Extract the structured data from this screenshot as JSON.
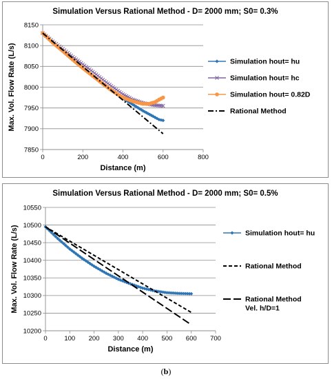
{
  "chart_data": [
    {
      "type": "line",
      "title": "Simulation Versus Rational Method - D= 2000 mm; S0= 0.3%",
      "xlabel": "Distance (m)",
      "ylabel": "Max. Vol. Flow Rate (L/s)",
      "xlim": [
        0,
        800
      ],
      "ylim": [
        7850,
        8150
      ],
      "xticks": [
        0,
        200,
        400,
        600,
        800
      ],
      "yticks": [
        7850,
        7900,
        7950,
        8000,
        8050,
        8100,
        8150
      ],
      "grid": "horizontal",
      "legend": "right",
      "series": [
        {
          "name": "Simulation hout= hu",
          "color": "#2e75b6",
          "marker": "diamond",
          "x": [
            0,
            50,
            100,
            150,
            200,
            250,
            300,
            350,
            400,
            450,
            500,
            550,
            580,
            600
          ],
          "y": [
            8130,
            8107,
            8087,
            8066,
            8046,
            8027,
            8008,
            7990,
            7973,
            7958,
            7943,
            7930,
            7922,
            7920
          ]
        },
        {
          "name": "Simulation hout= hc",
          "color": "#8064a2",
          "marker": "x",
          "x": [
            0,
            50,
            100,
            150,
            200,
            250,
            300,
            350,
            400,
            450,
            500,
            550,
            600
          ],
          "y": [
            8130,
            8110,
            8092,
            8073,
            8055,
            8037,
            8018,
            8000,
            7983,
            7970,
            7962,
            7957,
            7955
          ]
        },
        {
          "name": "Simulation hout= 0.82D",
          "color": "#f79646",
          "marker": "circle",
          "x": [
            0,
            50,
            100,
            150,
            200,
            250,
            300,
            350,
            400,
            450,
            480,
            500,
            530,
            560,
            580,
            600
          ],
          "y": [
            8130,
            8107,
            8087,
            8066,
            8046,
            8027,
            8008,
            7990,
            7975,
            7966,
            7962,
            7960,
            7960,
            7964,
            7970,
            7975
          ]
        },
        {
          "name": "Rational Method",
          "color": "#000000",
          "marker": "none",
          "dash": "dashdot",
          "x": [
            0,
            600
          ],
          "y": [
            8130,
            7888
          ]
        }
      ]
    },
    {
      "type": "line",
      "title": "Simulation Versus Rational Method - D= 2000 mm; S0= 0.5%",
      "xlabel": "Distance (m)",
      "ylabel": "Max. Vol. Flow Rate (L/s)",
      "xlim": [
        0,
        700
      ],
      "ylim": [
        10200,
        10550
      ],
      "xticks": [
        0,
        100,
        200,
        300,
        400,
        500,
        600,
        700
      ],
      "yticks": [
        10200,
        10250,
        10300,
        10350,
        10400,
        10450,
        10500,
        10550
      ],
      "grid": "horizontal",
      "legend": "right",
      "series": [
        {
          "name": "Simulation hout= hu",
          "color": "#2e75b6",
          "marker": "diamond",
          "x": [
            0,
            50,
            100,
            150,
            200,
            250,
            300,
            350,
            400,
            450,
            500,
            550,
            600
          ],
          "y": [
            10495,
            10462,
            10432,
            10406,
            10383,
            10363,
            10346,
            10333,
            10321,
            10313,
            10308,
            10306,
            10305
          ]
        },
        {
          "name": "Rational Method",
          "color": "#000000",
          "marker": "none",
          "dash": "dash",
          "x": [
            0,
            600
          ],
          "y": [
            10495,
            10252
          ]
        },
        {
          "name": "Rational Method Vel. h/D=1",
          "color": "#000000",
          "marker": "none",
          "dash": "longdash",
          "x": [
            0,
            600
          ],
          "y": [
            10495,
            10217
          ]
        }
      ]
    }
  ],
  "legend_b_third_lines": [
    "Rational Method",
    "Vel. h/D=1"
  ],
  "caption": {
    "open": "(",
    "letter": "b",
    "close": ")"
  }
}
